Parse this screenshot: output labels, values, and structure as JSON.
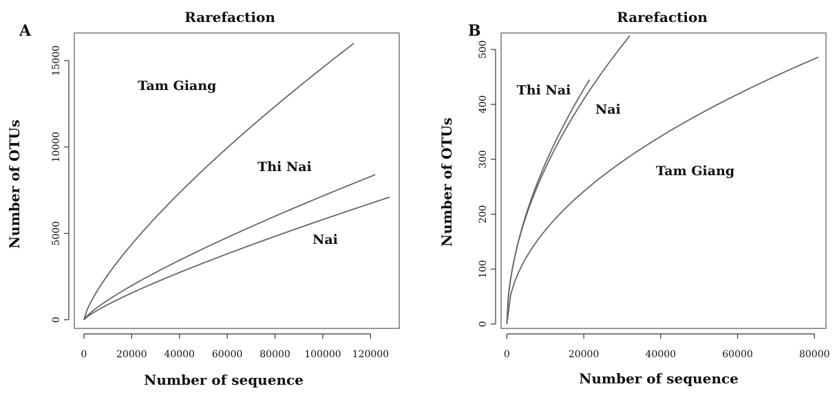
{
  "chart_data": [
    {
      "panel": "A",
      "type": "line",
      "title": "Rarefaction",
      "xlabel": "Number of sequence",
      "ylabel": "Number of OTUs",
      "xlim": [
        -4000,
        132000
      ],
      "ylim": [
        -500,
        16600
      ],
      "xticks": [
        0,
        20000,
        40000,
        60000,
        80000,
        100000,
        120000
      ],
      "yticks": [
        0,
        5000,
        10000,
        15000
      ],
      "grid": false,
      "legend": "none",
      "series": [
        {
          "name": "Tam Giang",
          "x_max": 113000,
          "y_max": 16000,
          "shape_exponent": 0.75,
          "label_pos": [
            39000,
            13300
          ]
        },
        {
          "name": "Thi Nai",
          "x_max": 122000,
          "y_max": 8400,
          "shape_exponent": 0.8,
          "label_pos": [
            84000,
            8600
          ]
        },
        {
          "name": "Nai",
          "x_max": 128000,
          "y_max": 7100,
          "shape_exponent": 0.82,
          "label_pos": [
            101000,
            4400
          ]
        }
      ]
    },
    {
      "panel": "B",
      "type": "line",
      "title": "Rarefaction",
      "xlabel": "Number of sequence",
      "ylabel": "Number of OTUs",
      "xlim": [
        -1500,
        83000
      ],
      "ylim": [
        -8,
        530
      ],
      "xticks": [
        0,
        20000,
        40000,
        60000,
        80000
      ],
      "yticks": [
        0,
        100,
        200,
        300,
        400,
        500
      ],
      "grid": false,
      "legend": "none",
      "series": [
        {
          "name": "Thi Nai",
          "x_max": 21500,
          "y_max": 445,
          "shape_exponent": 0.55,
          "label_pos": [
            9600,
            418
          ]
        },
        {
          "name": "Nai",
          "x_max": 32000,
          "y_max": 525,
          "shape_exponent": 0.53,
          "label_pos": [
            26300,
            383
          ]
        },
        {
          "name": "Tam Giang",
          "x_max": 81000,
          "y_max": 486,
          "shape_exponent": 0.5,
          "label_pos": [
            49000,
            271
          ]
        }
      ]
    }
  ]
}
